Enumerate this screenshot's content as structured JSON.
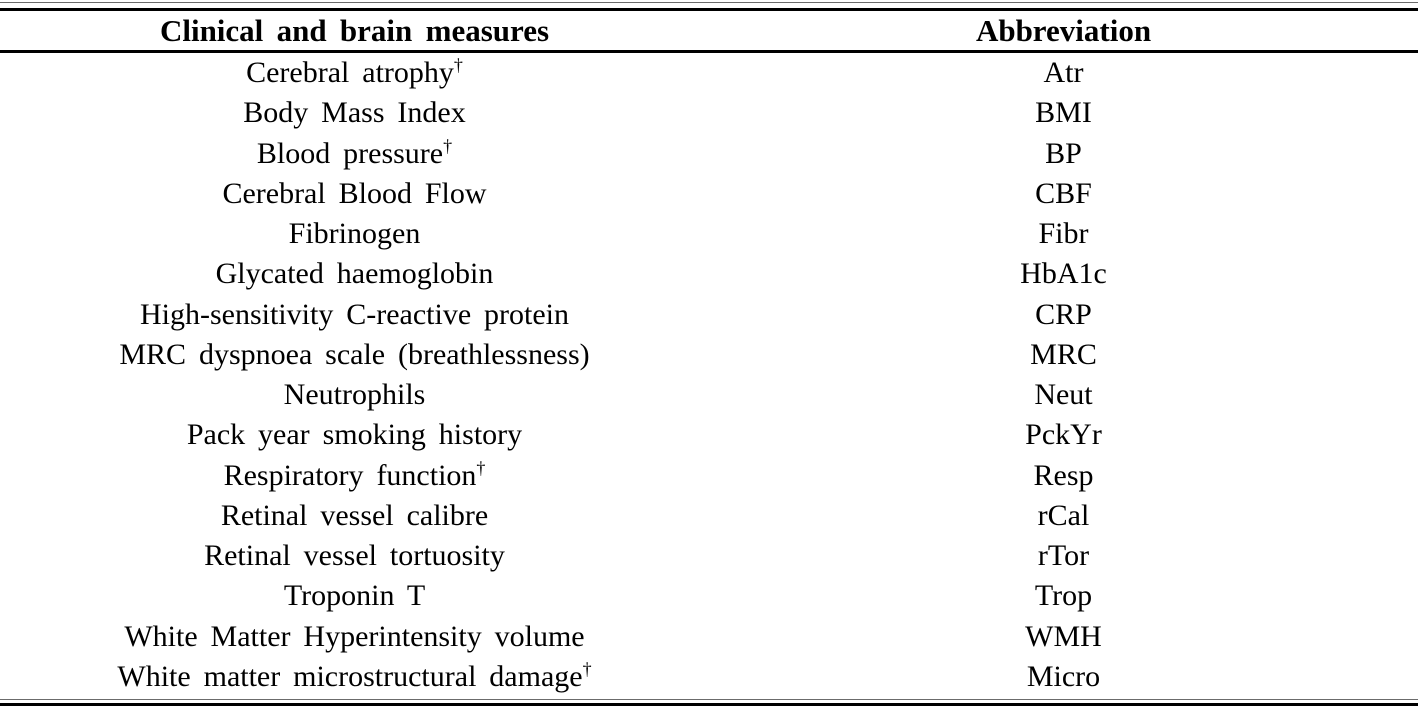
{
  "page": {
    "background": "#ffffff",
    "text_color": "#000000",
    "thick_rule_color": "#000000",
    "thin_rule_color": "#6b6b6b"
  },
  "table": {
    "headers": [
      {
        "label": "Clinical and brain measures"
      },
      {
        "label": "Abbreviation"
      }
    ],
    "dagger_symbol": "†",
    "rows": [
      {
        "measure": "Cerebral atrophy",
        "dagger": "†",
        "abbr": "Atr"
      },
      {
        "measure": "Body Mass Index",
        "dagger": "",
        "abbr": "BMI"
      },
      {
        "measure": "Blood pressure",
        "dagger": "†",
        "abbr": "BP"
      },
      {
        "measure": "Cerebral Blood Flow",
        "dagger": "",
        "abbr": "CBF"
      },
      {
        "measure": "Fibrinogen",
        "dagger": "",
        "abbr": "Fibr"
      },
      {
        "measure": "Glycated haemoglobin",
        "dagger": "",
        "abbr": "HbA1c"
      },
      {
        "measure": "High-sensitivity C-reactive protein",
        "dagger": "",
        "abbr": "CRP"
      },
      {
        "measure": "MRC dyspnoea scale (breathlessness)",
        "dagger": "",
        "abbr": "MRC"
      },
      {
        "measure": "Neutrophils",
        "dagger": "",
        "abbr": "Neut"
      },
      {
        "measure": "Pack year smoking history",
        "dagger": "",
        "abbr": "PckYr"
      },
      {
        "measure": "Respiratory function",
        "dagger": "†",
        "abbr": "Resp"
      },
      {
        "measure": "Retinal vessel calibre",
        "dagger": "",
        "abbr": "rCal"
      },
      {
        "measure": "Retinal vessel tortuosity",
        "dagger": "",
        "abbr": "rTor"
      },
      {
        "measure": "Troponin T",
        "dagger": "",
        "abbr": "Trop"
      },
      {
        "measure": "White Matter Hyperintensity volume",
        "dagger": "",
        "abbr": "WMH"
      },
      {
        "measure": "White matter microstructural damage",
        "dagger": "†",
        "abbr": "Micro"
      }
    ]
  }
}
